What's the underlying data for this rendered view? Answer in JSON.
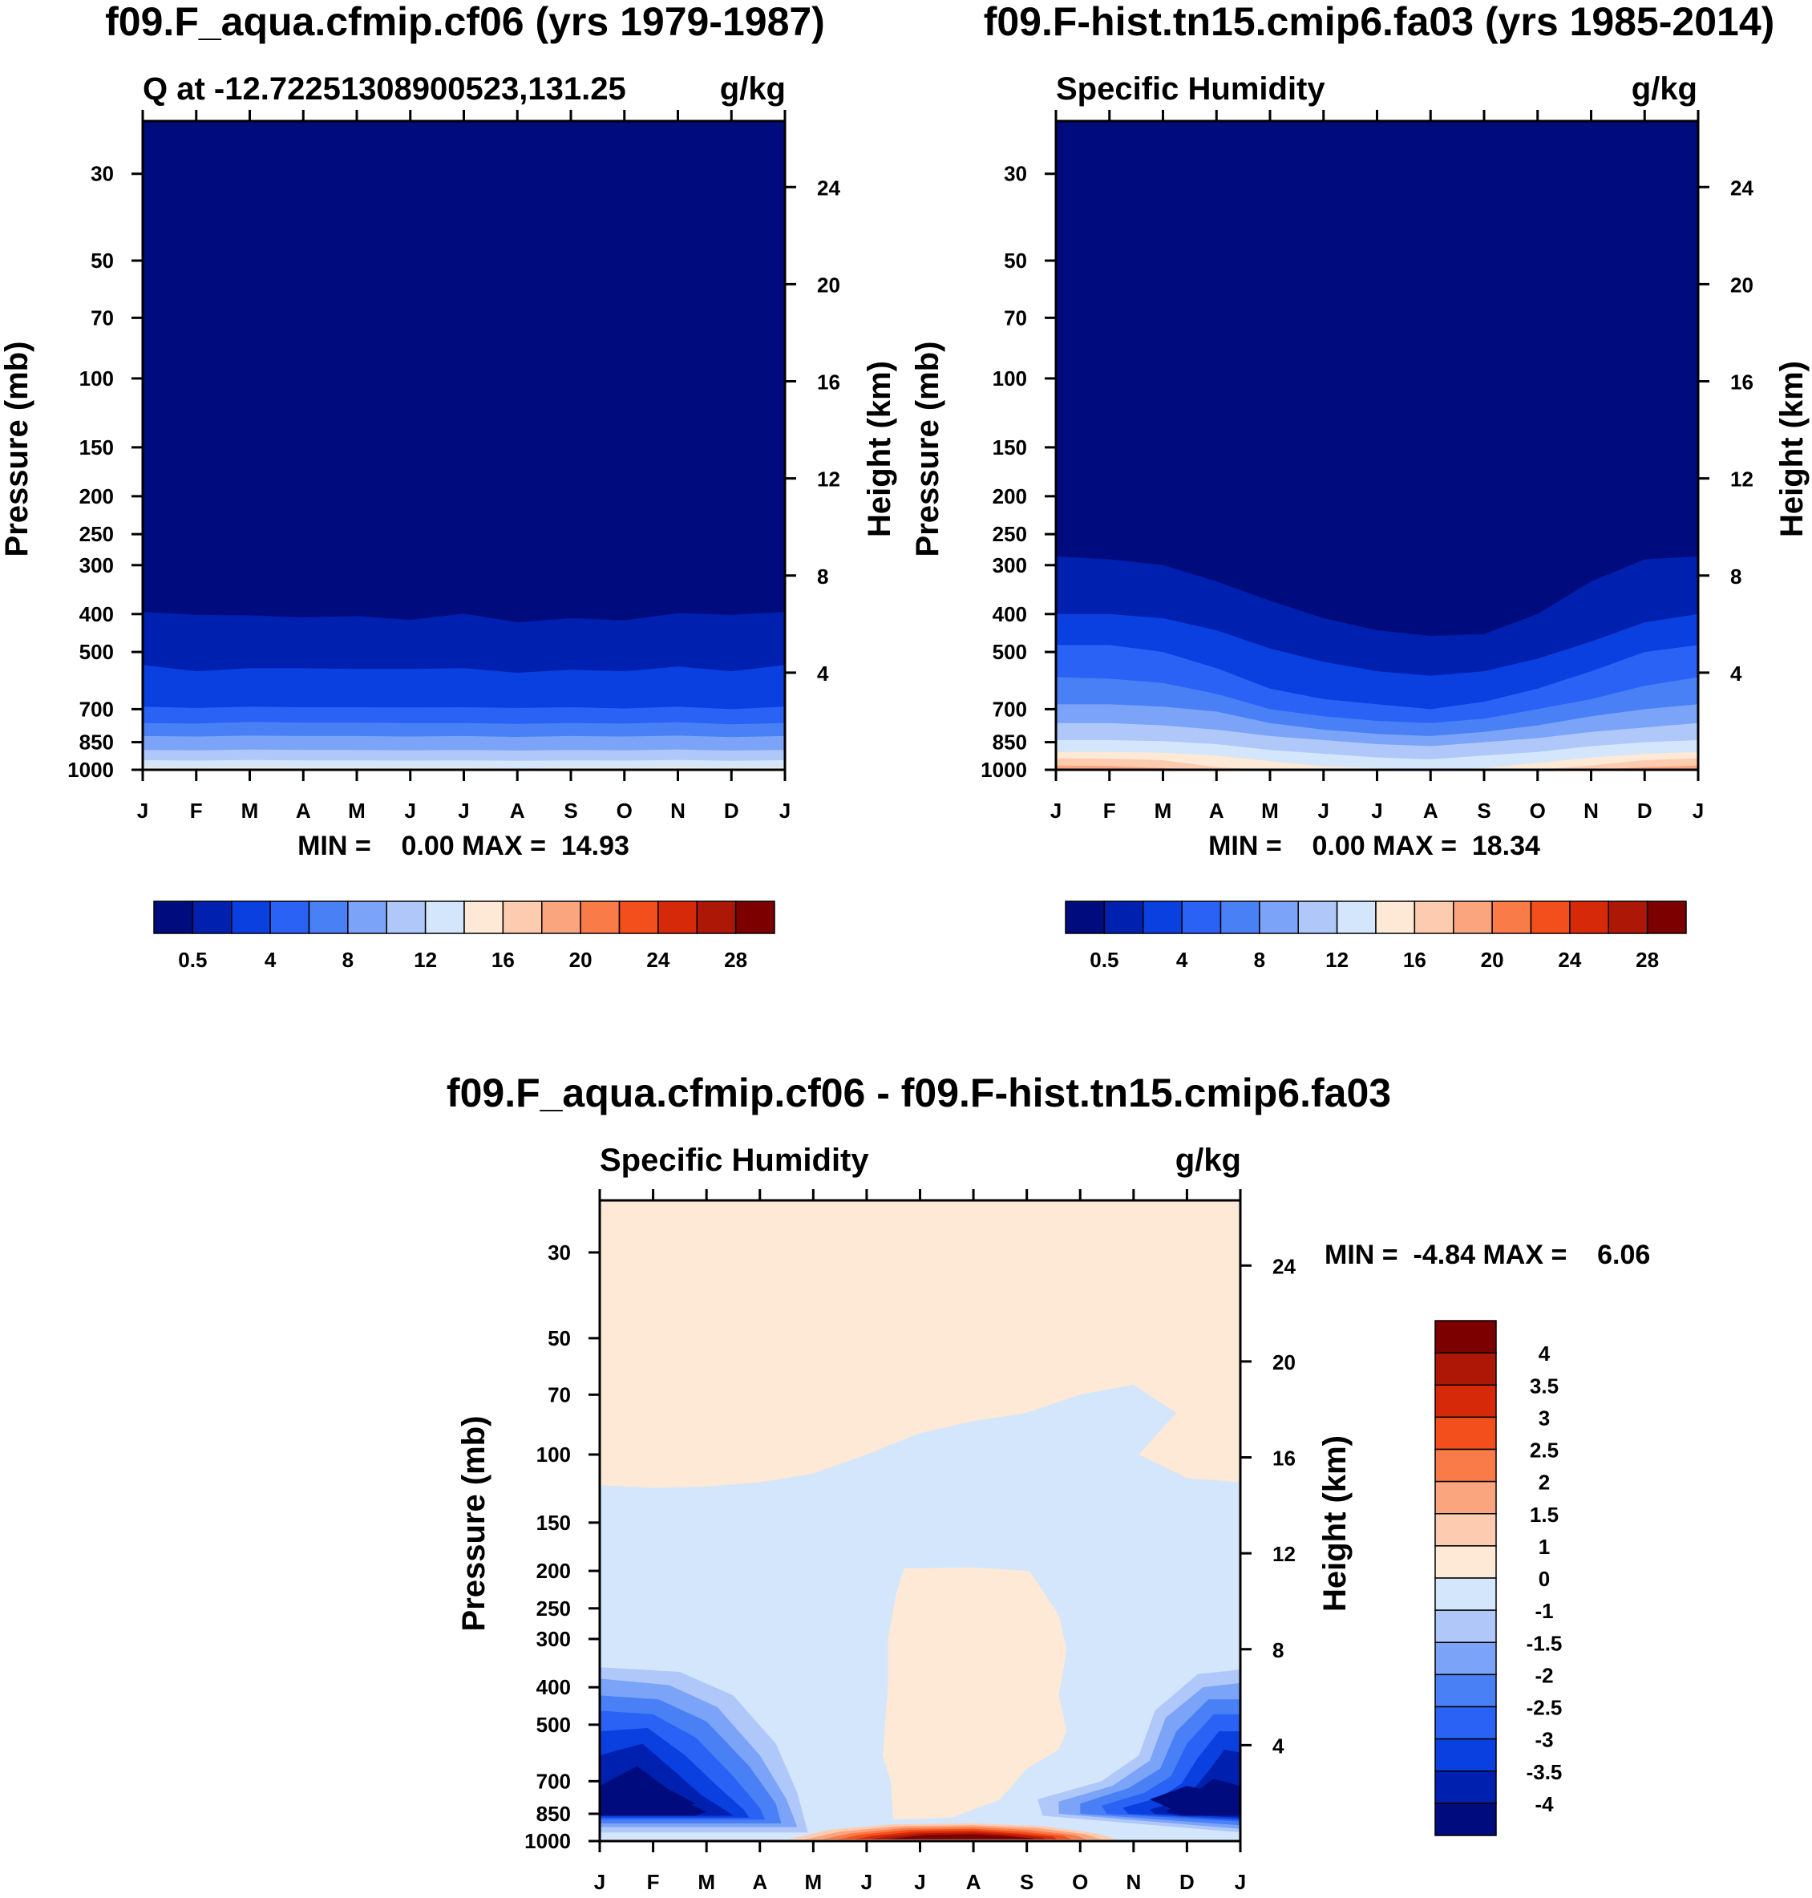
{
  "colors": {
    "seq_palette": [
      "#000c7d",
      "#0020b0",
      "#0a3fe0",
      "#2a62f5",
      "#4a80f5",
      "#7ba3f7",
      "#b0c8f9",
      "#d3e6fb",
      "#fde9d6",
      "#fdccb0",
      "#fba57e",
      "#f97b48",
      "#f24f1c",
      "#d6290a",
      "#ad1706",
      "#7d0000"
    ],
    "diff_palette": [
      "#000c7d",
      "#0020b0",
      "#0a3fe0",
      "#2a62f5",
      "#4a80f5",
      "#7ba3f7",
      "#b0c8f9",
      "#d3e6fb",
      "#fde9d6",
      "#fdccb0",
      "#fba57e",
      "#f97b48",
      "#f24f1c",
      "#d6290a",
      "#ad1706",
      "#7d0000"
    ]
  },
  "chart_data": [
    {
      "type": "heatmap",
      "title": "f09.F_aqua.cfmip.cf06 (yrs 1979-1987)",
      "left_title": "Q at -12.72251308900523,131.25",
      "right_title": "g/kg",
      "xlabel": "",
      "ylabel": "Pressure (mb)",
      "y2label": "Height (km)",
      "x_ticks": [
        "J",
        "F",
        "M",
        "A",
        "M",
        "J",
        "J",
        "A",
        "S",
        "O",
        "N",
        "D",
        "J"
      ],
      "y_ticks": [
        30,
        50,
        70,
        100,
        150,
        200,
        250,
        300,
        400,
        500,
        700,
        850,
        1000
      ],
      "y2_ticks": [
        24,
        20,
        16,
        12,
        8,
        4
      ],
      "ylim": [
        1000,
        22
      ],
      "min_max_text": "MIN =    0.00 MAX =  14.93",
      "colorbar_labels": [
        "0.5",
        "4",
        "8",
        "12",
        "16",
        "20",
        "24",
        "28"
      ],
      "contour_levels_g_per_kg": [
        0.5,
        2,
        4,
        6,
        8,
        10,
        12,
        14,
        16,
        18,
        20,
        22,
        24,
        26,
        28
      ],
      "boundaries_mb_by_month": {
        "q_0.5": [
          395,
          402,
          403,
          408,
          405,
          414,
          399,
          420,
          410,
          415,
          398,
          402,
          395
        ],
        "q_2": [
          540,
          560,
          550,
          550,
          552,
          552,
          550,
          565,
          555,
          560,
          545,
          560,
          540
        ],
        "q_4": [
          690,
          695,
          690,
          692,
          692,
          693,
          692,
          695,
          692,
          697,
          690,
          700,
          690
        ],
        "q_6": [
          760,
          762,
          755,
          758,
          758,
          760,
          760,
          763,
          760,
          762,
          756,
          765,
          760
        ],
        "q_8": [
          820,
          822,
          818,
          820,
          820,
          822,
          820,
          824,
          820,
          822,
          818,
          825,
          820
        ],
        "q_10": [
          890,
          892,
          888,
          890,
          890,
          892,
          890,
          893,
          890,
          892,
          888,
          893,
          890
        ],
        "q_12": [
          945,
          947,
          944,
          946,
          946,
          947,
          946,
          948,
          946,
          947,
          944,
          948,
          945
        ],
        "q_14": [
          985,
          988,
          984,
          986,
          986,
          988,
          986,
          990,
          986,
          988,
          984,
          988,
          985
        ]
      }
    },
    {
      "type": "heatmap",
      "title": "f09.F-hist.tn15.cmip6.fa03 (yrs 1985-2014)",
      "left_title": "Specific Humidity",
      "right_title": "g/kg",
      "ylabel": "Pressure (mb)",
      "y2label": "Height (km)",
      "x_ticks": [
        "J",
        "F",
        "M",
        "A",
        "M",
        "J",
        "J",
        "A",
        "S",
        "O",
        "N",
        "D",
        "J"
      ],
      "y_ticks": [
        30,
        50,
        70,
        100,
        150,
        200,
        250,
        300,
        400,
        500,
        700,
        850,
        1000
      ],
      "y2_ticks": [
        24,
        20,
        16,
        12,
        8,
        4
      ],
      "ylim": [
        1000,
        22
      ],
      "min_max_text": "MIN =    0.00 MAX =  18.34",
      "colorbar_labels": [
        "0.5",
        "4",
        "8",
        "12",
        "16",
        "20",
        "24",
        "28"
      ],
      "contour_levels_g_per_kg": [
        0.5,
        2,
        4,
        6,
        8,
        10,
        12,
        14,
        16,
        18,
        20,
        22,
        24,
        26,
        28
      ],
      "boundaries_mb_by_month": {
        "q_0.5": [
          285,
          290,
          300,
          330,
          370,
          410,
          440,
          455,
          450,
          400,
          330,
          290,
          285
        ],
        "q_2": [
          400,
          400,
          410,
          440,
          490,
          530,
          560,
          575,
          560,
          520,
          470,
          420,
          400
        ],
        "q_4": [
          480,
          480,
          500,
          550,
          620,
          660,
          680,
          700,
          670,
          620,
          560,
          500,
          480
        ],
        "q_6": [
          580,
          585,
          600,
          640,
          700,
          730,
          750,
          760,
          740,
          700,
          660,
          610,
          580
        ],
        "q_8": [
          680,
          680,
          690,
          710,
          760,
          790,
          810,
          820,
          800,
          770,
          730,
          700,
          680
        ],
        "q_10": [
          760,
          760,
          770,
          790,
          820,
          840,
          860,
          870,
          850,
          830,
          800,
          780,
          760
        ],
        "q_12": [
          840,
          840,
          845,
          860,
          890,
          910,
          930,
          940,
          920,
          900,
          870,
          850,
          840
        ],
        "q_14": [
          900,
          900,
          905,
          920,
          950,
          980,
          990,
          1000,
          990,
          960,
          930,
          910,
          900
        ],
        "q_16": [
          935,
          937,
          945,
          985,
          1000,
          1000,
          1000,
          1000,
          1000,
          1000,
          975,
          945,
          935
        ],
        "q_18": [
          975,
          978,
          990,
          1000,
          1000,
          1000,
          1000,
          1000,
          1000,
          1000,
          1000,
          985,
          975
        ]
      }
    },
    {
      "type": "heatmap",
      "title": "f09.F_aqua.cfmip.cf06 - f09.F-hist.tn15.cmip6.fa03",
      "left_title": "Specific Humidity",
      "right_title": "g/kg",
      "ylabel": "Pressure (mb)",
      "y2label": "Height (km)",
      "x_ticks": [
        "J",
        "F",
        "M",
        "A",
        "M",
        "J",
        "J",
        "A",
        "S",
        "O",
        "N",
        "D",
        "J"
      ],
      "y_ticks": [
        30,
        50,
        70,
        100,
        150,
        200,
        250,
        300,
        400,
        500,
        700,
        850,
        1000
      ],
      "y2_ticks": [
        24,
        20,
        16,
        12,
        8,
        4
      ],
      "ylim": [
        1000,
        22
      ],
      "min_max_text": "MIN =  -4.84 MAX =    6.06",
      "colorbar_labels": [
        "4",
        "3.5",
        "3",
        "2.5",
        "2",
        "1.5",
        "1",
        "0",
        "-1",
        "-1.5",
        "-2",
        "-2.5",
        "-3",
        "-3.5",
        "-4"
      ],
      "contour_levels_g_per_kg": [
        -4,
        -3.5,
        -3,
        -2.5,
        -2,
        -1.5,
        -1,
        0,
        1,
        1.5,
        2,
        2.5,
        3,
        3.5,
        4
      ],
      "regions": {
        "upper_positive_0_to_1": "above ~120 mb at Jan, rising to ~65 mb by Oct, returning to ~120 mb by Dec",
        "negative_minus1_to_0": "broad band ~120 mb to ~360 mb, extending down to surface Jun-Sep outside core",
        "positive_core_0_to_1": "Jun-Sep, from ~195 mb down to ~880 mb",
        "negative_lower_winter": "Jan-Apr and Oct-Dec below ~360 mb, minimum below -4 near 800 mb in Feb and Dec",
        "positive_near_surface": "May-Oct near 950-1000 mb, peak exceeding 4 in Jul-Aug"
      }
    }
  ]
}
